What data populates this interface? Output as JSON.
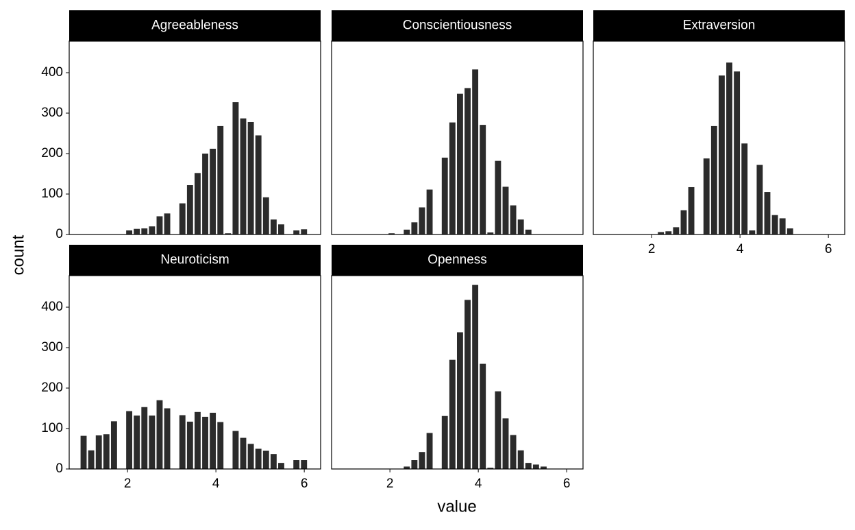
{
  "x_label": "value",
  "y_label": "count",
  "chart_data": [
    {
      "type": "histogram",
      "title": "Agreeableness",
      "color": "#2b2b2b",
      "bins": [
        0.92,
        1.092,
        1.264,
        1.436,
        1.608,
        1.78,
        1.952,
        2.124,
        2.296,
        2.468,
        2.64,
        2.812,
        2.984,
        3.156,
        3.328,
        3.5,
        3.672,
        3.844,
        4.016,
        4.188,
        4.36,
        4.532,
        4.704,
        4.876,
        5.048,
        5.22,
        5.392,
        5.564,
        5.736,
        5.908,
        6.08
      ],
      "values": [
        0,
        0,
        0,
        0,
        0,
        0,
        10,
        14,
        15,
        20,
        45,
        52,
        0,
        77,
        122,
        152,
        200,
        212,
        268,
        3,
        327,
        287,
        278,
        245,
        92,
        37,
        25,
        0,
        10,
        13
      ],
      "xlim": [
        0.68,
        6.37
      ],
      "ylim": [
        0,
        478
      ],
      "yticks": [
        0,
        100,
        200,
        300,
        400
      ]
    },
    {
      "type": "histogram",
      "title": "Conscientiousness",
      "color": "#2b2b2b",
      "bins": [
        0.92,
        1.092,
        1.264,
        1.436,
        1.608,
        1.78,
        1.952,
        2.124,
        2.296,
        2.468,
        2.64,
        2.812,
        2.984,
        3.156,
        3.328,
        3.5,
        3.672,
        3.844,
        4.016,
        4.188,
        4.36,
        4.532,
        4.704,
        4.876,
        5.048,
        5.22,
        5.392,
        5.564,
        5.736,
        5.908,
        6.08
      ],
      "values": [
        0,
        0,
        0,
        0,
        0,
        0,
        3,
        0,
        12,
        30,
        67,
        111,
        0,
        190,
        277,
        348,
        362,
        408,
        271,
        5,
        182,
        118,
        72,
        37,
        12,
        0,
        0,
        0,
        0,
        0
      ],
      "xlim": [
        0.68,
        6.37
      ],
      "ylim": [
        0,
        478
      ]
    },
    {
      "type": "histogram",
      "title": "Extraversion",
      "color": "#2b2b2b",
      "bins": [
        0.92,
        1.092,
        1.264,
        1.436,
        1.608,
        1.78,
        1.952,
        2.124,
        2.296,
        2.468,
        2.64,
        2.812,
        2.984,
        3.156,
        3.328,
        3.5,
        3.672,
        3.844,
        4.016,
        4.188,
        4.36,
        4.532,
        4.704,
        4.876,
        5.048,
        5.22,
        5.392,
        5.564,
        5.736,
        5.908,
        6.08
      ],
      "values": [
        0,
        0,
        0,
        0,
        0,
        0,
        0,
        6,
        8,
        18,
        60,
        117,
        0,
        188,
        268,
        393,
        425,
        403,
        225,
        10,
        172,
        105,
        48,
        40,
        15,
        0,
        0,
        0,
        0,
        0
      ],
      "xlim": [
        0.68,
        6.37
      ],
      "ylim": [
        0,
        478
      ],
      "xticks": [
        2,
        4,
        6
      ]
    },
    {
      "type": "histogram",
      "title": "Neuroticism",
      "color": "#2b2b2b",
      "bins": [
        0.92,
        1.092,
        1.264,
        1.436,
        1.608,
        1.78,
        1.952,
        2.124,
        2.296,
        2.468,
        2.64,
        2.812,
        2.984,
        3.156,
        3.328,
        3.5,
        3.672,
        3.844,
        4.016,
        4.188,
        4.36,
        4.532,
        4.704,
        4.876,
        5.048,
        5.22,
        5.392,
        5.564,
        5.736,
        5.908,
        6.08
      ],
      "values": [
        82,
        46,
        83,
        86,
        118,
        0,
        143,
        132,
        153,
        132,
        170,
        150,
        0,
        133,
        117,
        141,
        129,
        139,
        116,
        0,
        94,
        77,
        62,
        50,
        45,
        37,
        15,
        0,
        22,
        22
      ],
      "xlim": [
        0.68,
        6.37
      ],
      "ylim": [
        0,
        478
      ],
      "xticks": [
        2,
        4,
        6
      ],
      "yticks": [
        0,
        100,
        200,
        300,
        400
      ]
    },
    {
      "type": "histogram",
      "title": "Openness",
      "color": "#2b2b2b",
      "bins": [
        0.92,
        1.092,
        1.264,
        1.436,
        1.608,
        1.78,
        1.952,
        2.124,
        2.296,
        2.468,
        2.64,
        2.812,
        2.984,
        3.156,
        3.328,
        3.5,
        3.672,
        3.844,
        4.016,
        4.188,
        4.36,
        4.532,
        4.704,
        4.876,
        5.048,
        5.22,
        5.392,
        5.564,
        5.736,
        5.908,
        6.08
      ],
      "values": [
        0,
        0,
        0,
        0,
        0,
        0,
        0,
        0,
        6,
        22,
        42,
        89,
        0,
        131,
        270,
        338,
        418,
        455,
        260,
        3,
        192,
        125,
        84,
        46,
        15,
        11,
        6,
        0,
        0,
        0
      ],
      "xlim": [
        0.68,
        6.37
      ],
      "ylim": [
        0,
        478
      ],
      "xticks": [
        2,
        4,
        6
      ]
    }
  ]
}
